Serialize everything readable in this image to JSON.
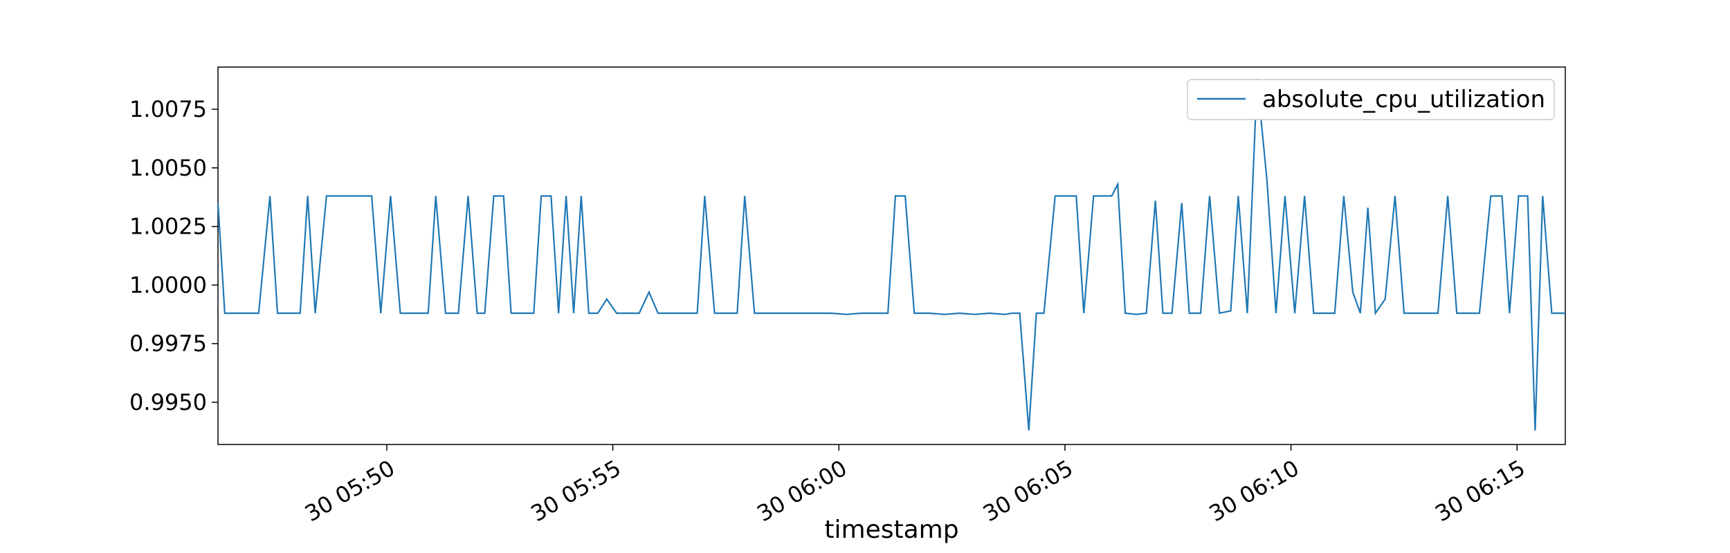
{
  "chart_data": {
    "type": "line",
    "xlabel": "timestamp",
    "ylabel": "",
    "title": "",
    "grid": false,
    "legend_position": "top-right",
    "x_unit": "time (HH:MM:SS), day 30",
    "xlim": [
      "05:46:16",
      "06:16:04"
    ],
    "ylim": [
      0.9932,
      1.0093
    ],
    "x_ticks": [
      {
        "value": "05:50:00",
        "label": "30 05:50"
      },
      {
        "value": "05:55:00",
        "label": "30 05:55"
      },
      {
        "value": "06:00:00",
        "label": "30 06:00"
      },
      {
        "value": "06:05:00",
        "label": "30 06:05"
      },
      {
        "value": "06:10:00",
        "label": "30 06:10"
      },
      {
        "value": "06:15:00",
        "label": "30 06:15"
      }
    ],
    "y_ticks": [
      {
        "value": 0.995,
        "label": "0.9950"
      },
      {
        "value": 0.9975,
        "label": "0.9975"
      },
      {
        "value": 1.0,
        "label": "1.0000"
      },
      {
        "value": 1.0025,
        "label": "1.0025"
      },
      {
        "value": 1.005,
        "label": "1.0050"
      },
      {
        "value": 1.0075,
        "label": "1.0075"
      }
    ],
    "series": [
      {
        "name": "absolute_cpu_utilization",
        "color": "#1f77b4",
        "points": [
          [
            "05:46:16",
            1.0035
          ],
          [
            "05:46:25",
            0.9988
          ],
          [
            "05:46:40",
            0.9988
          ],
          [
            "05:46:55",
            0.9988
          ],
          [
            "05:47:10",
            0.9988
          ],
          [
            "05:47:25",
            1.0038
          ],
          [
            "05:47:35",
            0.9988
          ],
          [
            "05:47:50",
            0.9988
          ],
          [
            "05:48:05",
            0.9988
          ],
          [
            "05:48:15",
            1.0038
          ],
          [
            "05:48:25",
            0.9988
          ],
          [
            "05:48:40",
            1.0038
          ],
          [
            "05:49:00",
            1.0038
          ],
          [
            "05:49:20",
            1.0038
          ],
          [
            "05:49:40",
            1.0038
          ],
          [
            "05:49:52",
            0.9988
          ],
          [
            "05:50:05",
            1.0038
          ],
          [
            "05:50:18",
            0.9988
          ],
          [
            "05:50:35",
            0.9988
          ],
          [
            "05:50:55",
            0.9988
          ],
          [
            "05:51:05",
            1.0038
          ],
          [
            "05:51:18",
            0.9988
          ],
          [
            "05:51:35",
            0.9988
          ],
          [
            "05:51:48",
            1.0038
          ],
          [
            "05:52:00",
            0.9988
          ],
          [
            "05:52:10",
            0.9988
          ],
          [
            "05:52:22",
            1.0038
          ],
          [
            "05:52:35",
            1.0038
          ],
          [
            "05:52:45",
            0.9988
          ],
          [
            "05:53:00",
            0.9988
          ],
          [
            "05:53:15",
            0.9988
          ],
          [
            "05:53:25",
            1.0038
          ],
          [
            "05:53:38",
            1.0038
          ],
          [
            "05:53:48",
            0.9988
          ],
          [
            "05:53:58",
            1.0038
          ],
          [
            "05:54:08",
            0.9988
          ],
          [
            "05:54:18",
            1.0038
          ],
          [
            "05:54:28",
            0.9988
          ],
          [
            "05:54:40",
            0.9988
          ],
          [
            "05:54:52",
            0.9994
          ],
          [
            "05:55:05",
            0.9988
          ],
          [
            "05:55:20",
            0.9988
          ],
          [
            "05:55:35",
            0.9988
          ],
          [
            "05:55:48",
            0.9997
          ],
          [
            "05:56:00",
            0.9988
          ],
          [
            "05:56:15",
            0.9988
          ],
          [
            "05:56:35",
            0.9988
          ],
          [
            "05:56:52",
            0.9988
          ],
          [
            "05:57:02",
            1.0038
          ],
          [
            "05:57:15",
            0.9988
          ],
          [
            "05:57:30",
            0.9988
          ],
          [
            "05:57:45",
            0.9988
          ],
          [
            "05:57:55",
            1.0038
          ],
          [
            "05:58:08",
            0.9988
          ],
          [
            "05:58:30",
            0.9988
          ],
          [
            "05:58:50",
            0.9988
          ],
          [
            "05:59:10",
            0.9988
          ],
          [
            "05:59:30",
            0.9988
          ],
          [
            "05:59:50",
            0.9988
          ],
          [
            "06:00:10",
            0.99875
          ],
          [
            "06:00:30",
            0.9988
          ],
          [
            "06:00:50",
            0.9988
          ],
          [
            "06:01:05",
            0.9988
          ],
          [
            "06:01:15",
            1.0038
          ],
          [
            "06:01:28",
            1.0038
          ],
          [
            "06:01:40",
            0.9988
          ],
          [
            "06:02:00",
            0.9988
          ],
          [
            "06:02:20",
            0.99875
          ],
          [
            "06:02:40",
            0.9988
          ],
          [
            "06:03:00",
            0.99875
          ],
          [
            "06:03:20",
            0.9988
          ],
          [
            "06:03:40",
            0.99875
          ],
          [
            "06:03:50",
            0.9988
          ],
          [
            "06:04:00",
            0.9988
          ],
          [
            "06:04:12",
            0.9938
          ],
          [
            "06:04:22",
            0.9988
          ],
          [
            "06:04:32",
            0.9988
          ],
          [
            "06:04:47",
            1.0038
          ],
          [
            "06:05:02",
            1.0038
          ],
          [
            "06:05:15",
            1.0038
          ],
          [
            "06:05:25",
            0.9988
          ],
          [
            "06:05:38",
            1.0038
          ],
          [
            "06:05:50",
            1.0038
          ],
          [
            "06:06:02",
            1.0038
          ],
          [
            "06:06:10",
            1.0043
          ],
          [
            "06:06:20",
            0.9988
          ],
          [
            "06:06:35",
            0.99875
          ],
          [
            "06:06:48",
            0.9988
          ],
          [
            "06:07:00",
            1.0036
          ],
          [
            "06:07:10",
            0.9988
          ],
          [
            "06:07:22",
            0.9988
          ],
          [
            "06:07:35",
            1.0035
          ],
          [
            "06:07:45",
            0.9988
          ],
          [
            "06:08:00",
            0.9988
          ],
          [
            "06:08:12",
            1.0038
          ],
          [
            "06:08:25",
            0.9988
          ],
          [
            "06:08:40",
            0.9989
          ],
          [
            "06:08:50",
            1.0038
          ],
          [
            "06:09:02",
            0.9988
          ],
          [
            "06:09:15",
            1.0088
          ],
          [
            "06:09:28",
            1.0045
          ],
          [
            "06:09:40",
            0.9988
          ],
          [
            "06:09:52",
            1.0038
          ],
          [
            "06:10:05",
            0.9988
          ],
          [
            "06:10:18",
            1.0038
          ],
          [
            "06:10:30",
            0.9988
          ],
          [
            "06:10:45",
            0.9988
          ],
          [
            "06:10:58",
            0.9988
          ],
          [
            "06:11:10",
            1.0038
          ],
          [
            "06:11:22",
            0.9997
          ],
          [
            "06:11:32",
            0.9988
          ],
          [
            "06:11:42",
            1.0033
          ],
          [
            "06:11:52",
            0.9988
          ],
          [
            "06:12:05",
            0.9994
          ],
          [
            "06:12:18",
            1.0038
          ],
          [
            "06:12:30",
            0.9988
          ],
          [
            "06:12:45",
            0.9988
          ],
          [
            "06:13:00",
            0.9988
          ],
          [
            "06:13:15",
            0.9988
          ],
          [
            "06:13:28",
            1.0038
          ],
          [
            "06:13:40",
            0.9988
          ],
          [
            "06:13:55",
            0.9988
          ],
          [
            "06:14:10",
            0.9988
          ],
          [
            "06:14:25",
            1.0038
          ],
          [
            "06:14:40",
            1.0038
          ],
          [
            "06:14:50",
            0.9988
          ],
          [
            "06:15:02",
            1.0038
          ],
          [
            "06:15:14",
            1.0038
          ],
          [
            "06:15:24",
            0.9938
          ],
          [
            "06:15:34",
            1.0038
          ],
          [
            "06:15:46",
            0.9988
          ],
          [
            "06:16:04",
            0.9988
          ]
        ]
      }
    ]
  }
}
